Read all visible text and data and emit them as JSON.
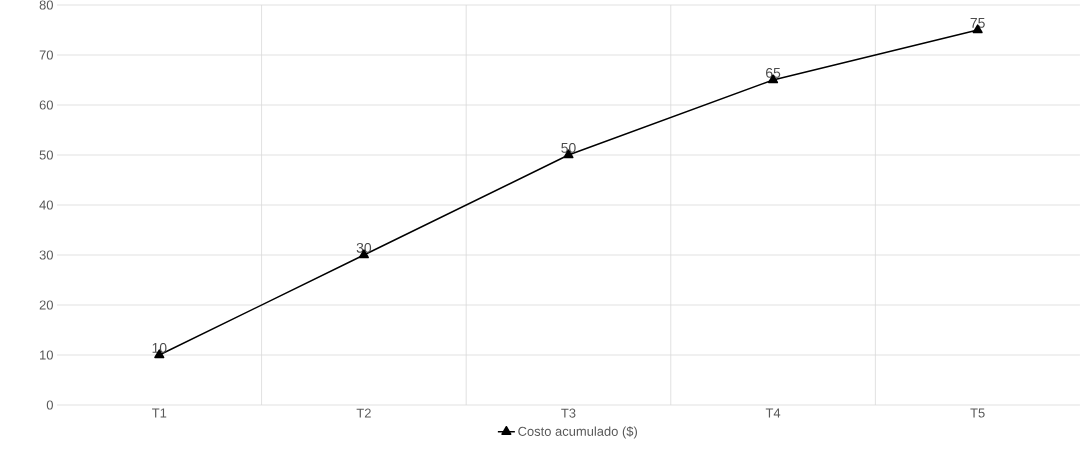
{
  "chart_data": {
    "type": "line",
    "categories": [
      "T1",
      "T2",
      "T3",
      "T4",
      "T5"
    ],
    "series": [
      {
        "name": "Costo acumulado ($)",
        "color": "#000000",
        "values": [
          10,
          30,
          50,
          65,
          75
        ]
      }
    ],
    "ylim": [
      0,
      80
    ],
    "yticks": [
      0,
      10,
      20,
      30,
      40,
      50,
      60,
      70,
      80
    ],
    "grid": true,
    "legend": "bottom",
    "marker": "triangle",
    "line_style": "solid",
    "data_labels": true
  }
}
